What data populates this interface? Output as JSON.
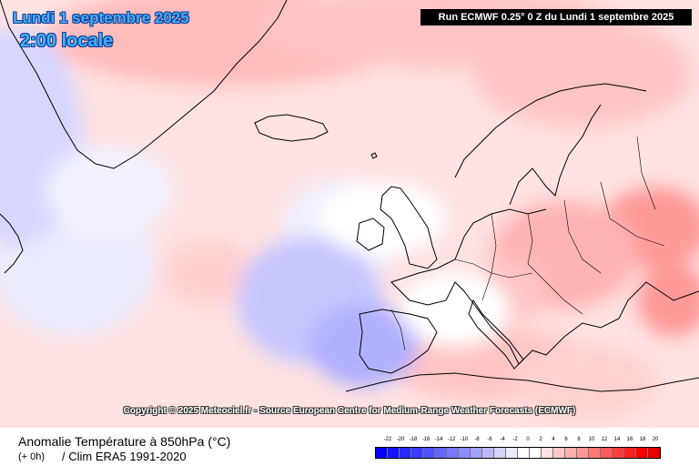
{
  "header": {
    "date": "Lundi 1 septembre 2025",
    "local_time": "2:00 locale",
    "run": "Run ECMWF 0.25° 0 Z du Lundi 1 septembre 2025"
  },
  "copyright": "Copyright © 2025 Meteociel.fr - Source European Centre for Medium-Range Weather Forecasts (ECMWF)",
  "footer": {
    "title": "Anomalie Température à 850hPa (°C)",
    "hour": "(+ 0h)",
    "clim": "/ Clim ERA5 1991-2020"
  },
  "legend": {
    "labels": [
      "-22",
      "-20",
      "-18",
      "-16",
      "-14",
      "-12",
      "-10",
      "-8",
      "-6",
      "-4",
      "-2",
      "0",
      "2",
      "4",
      "6",
      "8",
      "10",
      "12",
      "14",
      "16",
      "18",
      "20"
    ],
    "colors": [
      "#0000ff",
      "#1414ff",
      "#2828ff",
      "#3c3cff",
      "#5050ff",
      "#6464ff",
      "#7878ff",
      "#8c8cff",
      "#a0a0ff",
      "#b9b9ff",
      "#d2d2ff",
      "#eaeaff",
      "#ffffff",
      "#ffffff",
      "#ffe1e1",
      "#ffc8c8",
      "#ffafaf",
      "#ff9696",
      "#ff7878",
      "#ff5a5a",
      "#ff3c3c",
      "#ff1e1e",
      "#ff0000",
      "#e60000"
    ]
  },
  "map": {
    "land_fill": "#ffffff",
    "coast_color": "#000000",
    "warm_anomaly_color": "#ffb4b4",
    "cold_anomaly_color": "#b9b9ff"
  }
}
